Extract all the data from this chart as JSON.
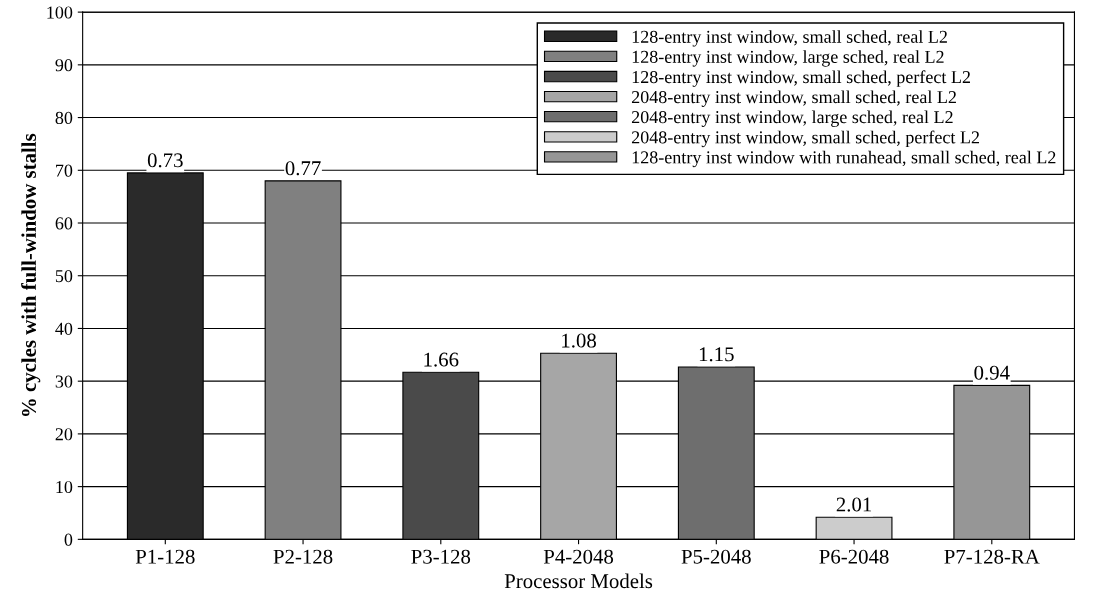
{
  "chart_data": {
    "type": "bar",
    "categories": [
      "P1-128",
      "P2-128",
      "P3-128",
      "P4-2048",
      "P5-2048",
      "P6-2048",
      "P7-128-RA"
    ],
    "series": [
      {
        "name": "128-entry inst window, small sched, real L2",
        "color": "#2a2a2a",
        "values": [
          69.5,
          null,
          null,
          null,
          null,
          null,
          null
        ]
      },
      {
        "name": "128-entry inst window, large sched, real L2",
        "color": "#808080",
        "values": [
          null,
          68,
          null,
          null,
          null,
          null,
          null
        ]
      },
      {
        "name": "128-entry inst window, small sched, perfect L2",
        "color": "#4a4a4a",
        "values": [
          null,
          null,
          31.7,
          null,
          null,
          null,
          null
        ]
      },
      {
        "name": "2048-entry inst window, small sched, real L2",
        "color": "#a6a6a6",
        "values": [
          null,
          null,
          null,
          35.3,
          null,
          null,
          null
        ]
      },
      {
        "name": "2048-entry inst window, large sched, real L2",
        "color": "#6e6e6e",
        "values": [
          null,
          null,
          null,
          null,
          32.7,
          null,
          null
        ]
      },
      {
        "name": "2048-entry inst window, small sched, perfect L2",
        "color": "#cccccc",
        "values": [
          null,
          null,
          null,
          null,
          null,
          4.2,
          null
        ]
      },
      {
        "name": "128-entry inst window with runahead, small sched, real L2",
        "color": "#969696",
        "values": [
          null,
          null,
          null,
          null,
          null,
          null,
          29.2
        ]
      }
    ],
    "annotations": [
      {
        "text": "0.73",
        "x": "P1-128",
        "y": 69.5
      },
      {
        "text": "0.77",
        "x": "P2-128",
        "y": 68
      },
      {
        "text": "1.66",
        "x": "P3-128",
        "y": 31.7
      },
      {
        "text": "1.08",
        "x": "P4-2048",
        "y": 35.3
      },
      {
        "text": "1.15",
        "x": "P5-2048",
        "y": 32.7
      },
      {
        "text": "2.01",
        "x": "P6-2048",
        "y": 4.2
      },
      {
        "text": "0.94",
        "x": "P7-128-RA",
        "y": 29.2
      }
    ],
    "xlabel": "Processor Models",
    "ylabel": "% cycles with full-window stalls",
    "ylim": [
      0,
      100
    ],
    "yticks": [
      0,
      10,
      20,
      30,
      40,
      50,
      60,
      70,
      80,
      90,
      100
    ],
    "grid": "y",
    "legend": "top right"
  }
}
